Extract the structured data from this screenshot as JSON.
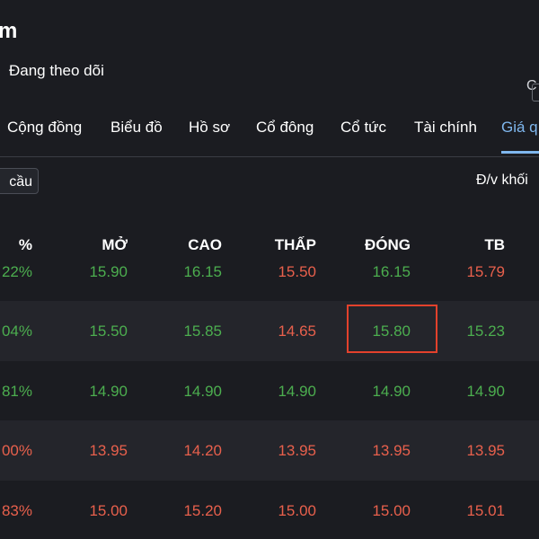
{
  "header": {
    "title": "m",
    "follow_label": "Đang theo dõi",
    "right_peek": "C"
  },
  "tabs": [
    {
      "label": "Cộng đồng"
    },
    {
      "label": "Biểu đồ"
    },
    {
      "label": "Hồ sơ"
    },
    {
      "label": "Cổ đông"
    },
    {
      "label": "Cổ tức"
    },
    {
      "label": "Tài chính"
    },
    {
      "label": "Giá q"
    }
  ],
  "toolbar": {
    "filter_chip": "cầu",
    "unit_label": "Đ/v khối"
  },
  "table": {
    "headers": [
      "%",
      "MỞ",
      "CAO",
      "THẤP",
      "ĐÓNG",
      "TB"
    ],
    "rows": [
      {
        "pct": "22%",
        "open": "15.90",
        "high": "16.15",
        "low": "15.50",
        "close": "16.15",
        "avg": "15.79"
      },
      {
        "pct": "04%",
        "open": "15.50",
        "high": "15.85",
        "low": "14.65",
        "close": "15.80",
        "avg": "15.23"
      },
      {
        "pct": "81%",
        "open": "14.90",
        "high": "14.90",
        "low": "14.90",
        "close": "14.90",
        "avg": "14.90"
      },
      {
        "pct": "00%",
        "open": "13.95",
        "high": "14.20",
        "low": "13.95",
        "close": "13.95",
        "avg": "13.95"
      },
      {
        "pct": "83%",
        "open": "15.00",
        "high": "15.20",
        "low": "15.00",
        "close": "15.00",
        "avg": "15.01"
      }
    ]
  },
  "colors": {
    "background": "#1b1c21",
    "up": "#4cae4f",
    "down": "#e8604c",
    "active_tab": "#7fb7ee",
    "highlight_box": "#e3412c"
  }
}
